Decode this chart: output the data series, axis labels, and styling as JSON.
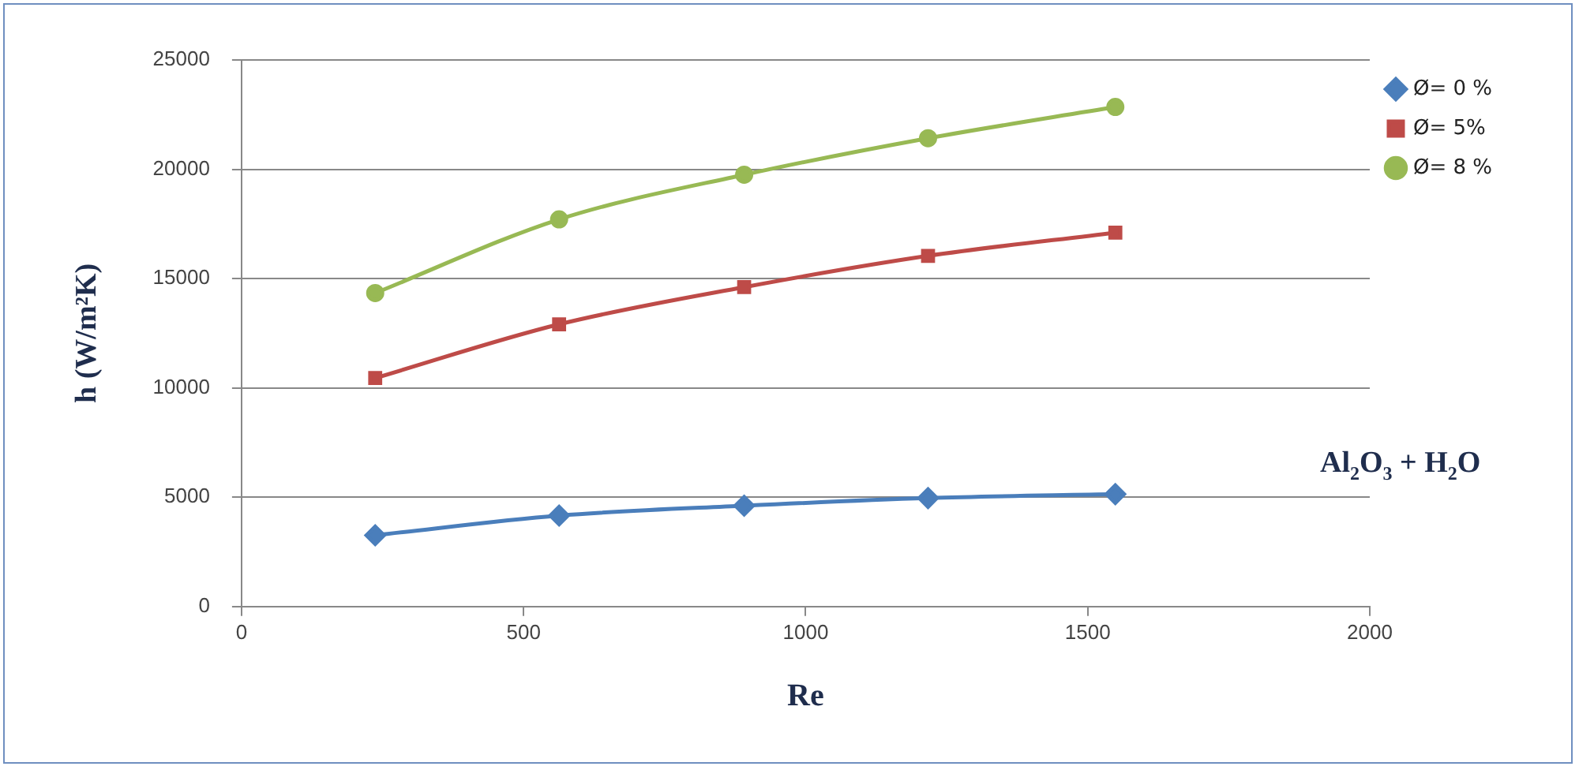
{
  "chart_data": {
    "type": "line",
    "xlabel": "Re",
    "ylabel": "h (W/m²K)",
    "annotations": [
      "Al$_{2}$O$_{3}$ + H$_{2}$O"
    ],
    "x": [
      237,
      563,
      891,
      1217,
      1549
    ],
    "series": [
      {
        "name": "Ø= 0 %",
        "color": "#4a7ebb",
        "marker": "diamond",
        "values": [
          3260,
          4160,
          4610,
          4960,
          5140
        ]
      },
      {
        "name": "Ø= 5%",
        "color": "#be4b48",
        "marker": "square",
        "values": [
          10450,
          12910,
          14610,
          16040,
          17100
        ]
      },
      {
        "name": "Ø= 8 %",
        "color": "#98b954",
        "marker": "circle",
        "values": [
          14340,
          17710,
          19750,
          21420,
          22850
        ]
      }
    ],
    "xlim": [
      0,
      2000
    ],
    "xticks": [
      0,
      500,
      1000,
      1500,
      2000
    ],
    "ylim": [
      0,
      25000
    ],
    "yticks": [
      0,
      5000,
      10000,
      15000,
      20000,
      25000
    ],
    "grid": "y",
    "legend": "top right",
    "line_style": "solid"
  }
}
